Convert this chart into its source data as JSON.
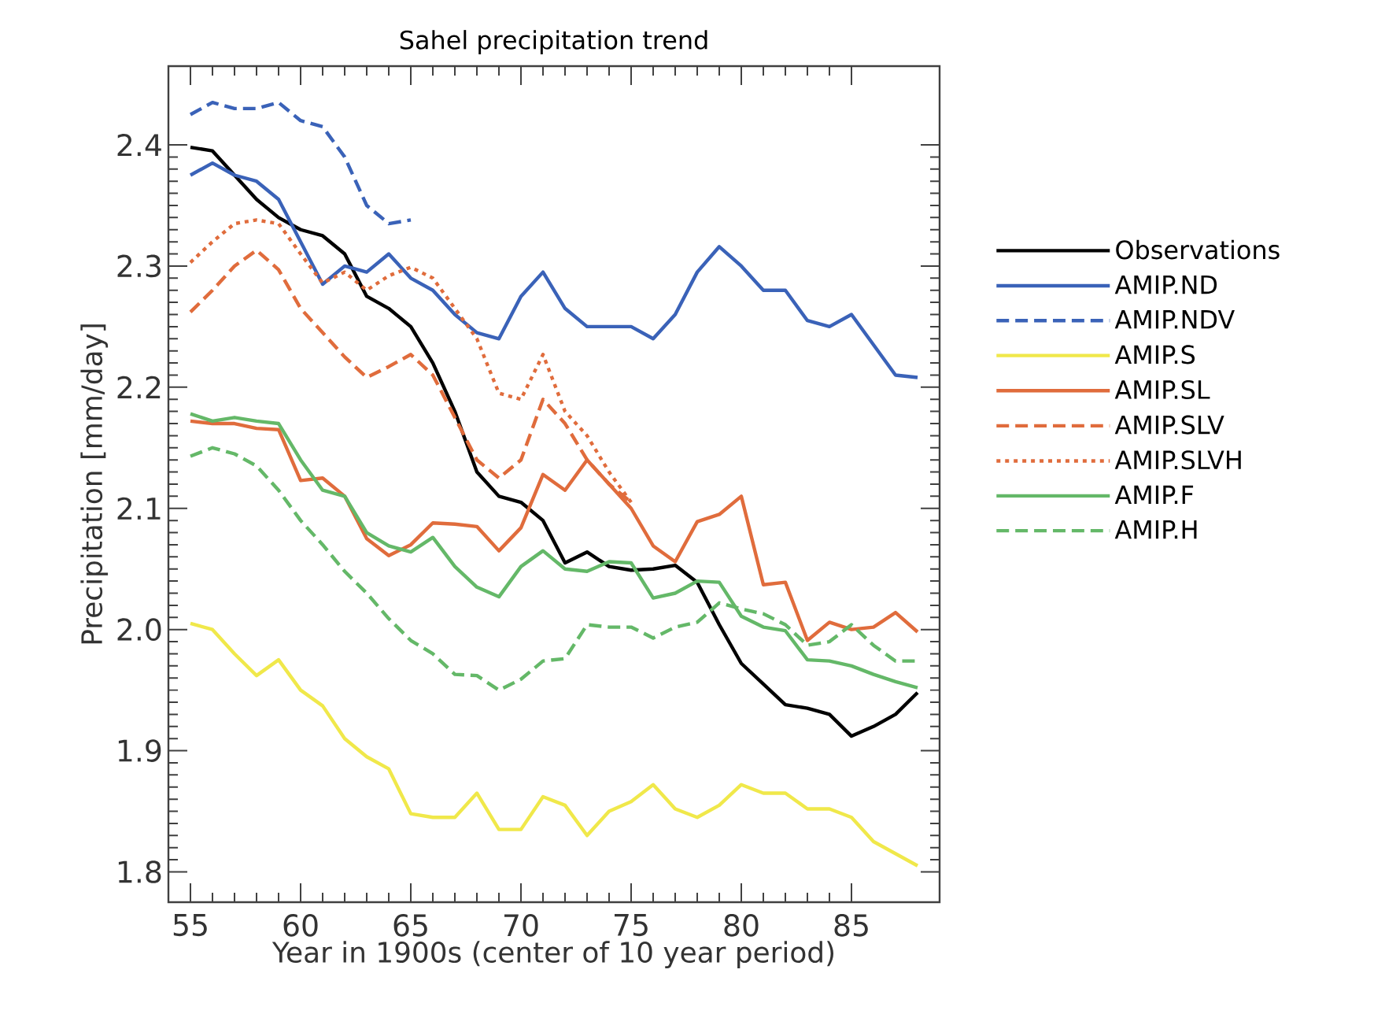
{
  "chart_data": {
    "type": "line",
    "title": "Sahel precipitation trend",
    "xlabel": "Year in 1900s (center of 10 year period)",
    "ylabel": "Precipitation [mm/day]",
    "x": [
      55,
      56,
      57,
      58,
      59,
      60,
      61,
      62,
      63,
      64,
      65,
      66,
      67,
      68,
      69,
      70,
      71,
      72,
      73,
      74,
      75,
      76,
      77,
      78,
      79,
      80,
      81,
      82,
      83,
      84,
      85,
      86,
      87,
      88
    ],
    "xlim": [
      54,
      89
    ],
    "ylim": [
      1.775,
      2.465
    ],
    "xticks": [
      55,
      60,
      65,
      70,
      75,
      80,
      85
    ],
    "yticks": [
      1.8,
      1.9,
      {
        "value": 2.0,
        "label": "2.0"
      },
      2.1,
      2.2,
      2.3,
      2.4
    ],
    "grid": false,
    "legend": "right",
    "series": [
      {
        "name": "Observations",
        "color": "#000000",
        "line_style": "solid",
        "values": [
          2.398,
          2.395,
          2.375,
          2.355,
          2.34,
          2.33,
          2.325,
          2.31,
          2.275,
          2.265,
          2.25,
          2.22,
          2.18,
          2.13,
          2.11,
          2.105,
          2.09,
          2.055,
          2.064,
          2.052,
          2.049,
          2.05,
          2.053,
          2.039,
          2.004,
          1.972,
          1.955,
          1.938,
          1.935,
          1.93,
          1.912,
          1.92,
          1.93,
          1.948
        ]
      },
      {
        "name": "AMIP.ND",
        "color": "#3a62b8",
        "line_style": "solid",
        "values": [
          2.375,
          2.385,
          2.375,
          2.37,
          2.355,
          2.32,
          2.285,
          2.3,
          2.295,
          2.31,
          2.29,
          2.28,
          2.26,
          2.245,
          2.24,
          2.275,
          2.295,
          2.265,
          2.25,
          2.25,
          2.25,
          2.24,
          2.26,
          2.295,
          2.316,
          2.3,
          2.28,
          2.28,
          2.255,
          2.25,
          2.26,
          2.235,
          2.21,
          2.208
        ]
      },
      {
        "name": "AMIP.NDV",
        "color": "#3a62b8",
        "line_style": "dashed",
        "values": [
          2.425,
          2.435,
          2.43,
          2.43,
          2.435,
          2.42,
          2.415,
          2.39,
          2.35,
          2.335,
          2.338,
          null,
          null,
          null,
          null,
          null,
          null,
          null,
          null,
          null,
          null,
          null,
          null,
          null,
          null,
          null,
          null,
          null,
          null,
          null,
          null,
          null,
          null,
          null
        ]
      },
      {
        "name": "AMIP.S",
        "color": "#f0e84a",
        "line_style": "solid",
        "values": [
          2.005,
          2.0,
          1.98,
          1.962,
          1.975,
          1.95,
          1.937,
          1.91,
          1.895,
          1.885,
          1.848,
          1.845,
          1.845,
          1.865,
          1.835,
          1.835,
          1.862,
          1.855,
          1.83,
          1.85,
          1.858,
          1.872,
          1.852,
          1.845,
          1.855,
          1.872,
          1.865,
          1.865,
          1.852,
          1.852,
          1.845,
          1.825,
          1.815,
          1.805
        ]
      },
      {
        "name": "AMIP.SL",
        "color": "#e06c3c",
        "line_style": "solid",
        "values": [
          2.172,
          2.17,
          2.17,
          2.166,
          2.165,
          2.123,
          2.125,
          2.11,
          2.075,
          2.061,
          2.07,
          2.088,
          2.087,
          2.085,
          2.065,
          2.084,
          2.128,
          2.115,
          2.14,
          2.12,
          2.1,
          2.069,
          2.056,
          2.089,
          2.095,
          2.11,
          2.037,
          2.039,
          1.991,
          2.006,
          2.0,
          2.002,
          2.014,
          1.998
        ]
      },
      {
        "name": "AMIP.SLV",
        "color": "#e06c3c",
        "line_style": "dashed",
        "values": [
          2.262,
          2.28,
          2.3,
          2.313,
          2.297,
          2.265,
          2.245,
          2.225,
          2.208,
          2.217,
          2.227,
          2.21,
          2.175,
          2.14,
          2.125,
          2.14,
          2.19,
          2.17,
          2.14,
          2.12,
          2.105,
          null,
          null,
          null,
          null,
          null,
          null,
          null,
          null,
          null,
          null,
          null,
          null,
          null
        ]
      },
      {
        "name": "AMIP.SLVH",
        "color": "#e06c3c",
        "line_style": "dotted",
        "values": [
          2.303,
          2.32,
          2.335,
          2.338,
          2.335,
          2.31,
          2.286,
          2.295,
          2.28,
          2.292,
          2.299,
          2.29,
          2.265,
          2.24,
          2.195,
          2.19,
          2.227,
          2.18,
          2.16,
          2.13,
          2.105,
          null,
          null,
          null,
          null,
          null,
          null,
          null,
          null,
          null,
          null,
          null,
          null,
          null
        ]
      },
      {
        "name": "AMIP.F",
        "color": "#64b868",
        "line_style": "solid",
        "values": [
          2.178,
          2.172,
          2.175,
          2.172,
          2.17,
          2.14,
          2.115,
          2.11,
          2.08,
          2.069,
          2.064,
          2.076,
          2.052,
          2.035,
          2.027,
          2.052,
          2.065,
          2.05,
          2.048,
          2.056,
          2.055,
          2.026,
          2.03,
          2.04,
          2.039,
          2.011,
          2.002,
          1.999,
          1.975,
          1.974,
          1.97,
          1.963,
          1.957,
          1.952
        ]
      },
      {
        "name": "AMIP.H",
        "color": "#64b868",
        "line_style": "dashed",
        "values": [
          2.143,
          2.15,
          2.145,
          2.135,
          2.115,
          2.09,
          2.07,
          2.048,
          2.03,
          2.009,
          1.991,
          1.98,
          1.963,
          1.962,
          1.95,
          1.959,
          1.974,
          1.976,
          2.004,
          2.002,
          2.002,
          1.993,
          2.002,
          2.006,
          2.022,
          2.017,
          2.013,
          2.004,
          1.987,
          1.99,
          2.004,
          1.987,
          1.974,
          1.974
        ]
      }
    ]
  }
}
